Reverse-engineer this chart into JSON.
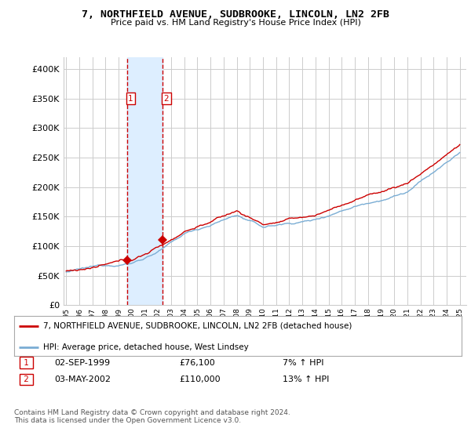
{
  "title": "7, NORTHFIELD AVENUE, SUDBROOKE, LINCOLN, LN2 2FB",
  "subtitle": "Price paid vs. HM Land Registry's House Price Index (HPI)",
  "ylim": [
    0,
    420000
  ],
  "yticks": [
    0,
    50000,
    100000,
    150000,
    200000,
    250000,
    300000,
    350000,
    400000
  ],
  "xlim_start": 1994.8,
  "xlim_end": 2025.5,
  "background_color": "#ffffff",
  "grid_color": "#cccccc",
  "transaction1": {
    "date": "02-SEP-1999",
    "year": 1999.67,
    "price": 76100,
    "label": "1",
    "hpi_pct": "7%"
  },
  "transaction2": {
    "date": "03-MAY-2002",
    "year": 2002.37,
    "price": 110000,
    "label": "2",
    "hpi_pct": "13%"
  },
  "legend_line1": "7, NORTHFIELD AVENUE, SUDBROOKE, LINCOLN, LN2 2FB (detached house)",
  "legend_line2": "HPI: Average price, detached house, West Lindsey",
  "footer": "Contains HM Land Registry data © Crown copyright and database right 2024.\nThis data is licensed under the Open Government Licence v3.0.",
  "red_line_color": "#cc0000",
  "blue_line_color": "#7aadd4",
  "marker_color": "#cc0000",
  "vline_color": "#cc0000",
  "highlight_color": "#ddeeff"
}
